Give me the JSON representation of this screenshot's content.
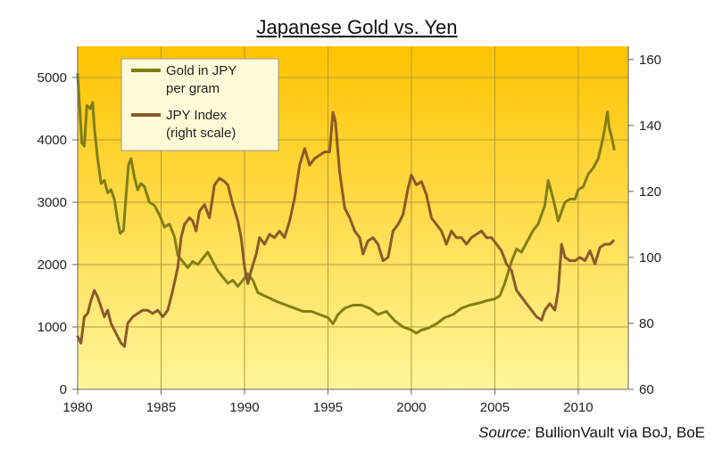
{
  "chart_data": {
    "type": "line",
    "title": "Japanese Gold vs. Yen",
    "source_label": "Source:",
    "source_text": "BullionVault via BoJ, BoE",
    "x_ticks": [
      "1980",
      "1985",
      "1990",
      "1995",
      "2000",
      "2005",
      "2010"
    ],
    "y_left_ticks": [
      "0",
      "1000",
      "2000",
      "3000",
      "4000",
      "5000"
    ],
    "y_right_ticks": [
      "60",
      "80",
      "100",
      "120",
      "140",
      "160"
    ],
    "x_range": [
      1980,
      2013
    ],
    "y_left_range": [
      0,
      5500
    ],
    "y_right_range": [
      60,
      164
    ],
    "grid": true,
    "legend_placement": "top-left",
    "background_gradient": [
      "#ffc300",
      "#fff59a"
    ],
    "series": [
      {
        "name_lines": [
          "Gold in JPY",
          "per gram"
        ],
        "axis": "left",
        "color": "#7f7f15",
        "points": [
          [
            1980.0,
            5050
          ],
          [
            1980.1,
            4600
          ],
          [
            1980.25,
            3950
          ],
          [
            1980.4,
            3900
          ],
          [
            1980.55,
            4550
          ],
          [
            1980.75,
            4500
          ],
          [
            1980.9,
            4600
          ],
          [
            1981.0,
            4200
          ],
          [
            1981.2,
            3700
          ],
          [
            1981.4,
            3300
          ],
          [
            1981.6,
            3350
          ],
          [
            1981.8,
            3150
          ],
          [
            1982.0,
            3200
          ],
          [
            1982.2,
            3050
          ],
          [
            1982.4,
            2700
          ],
          [
            1982.55,
            2500
          ],
          [
            1982.75,
            2550
          ],
          [
            1982.9,
            3100
          ],
          [
            1983.05,
            3600
          ],
          [
            1983.2,
            3700
          ],
          [
            1983.4,
            3400
          ],
          [
            1983.6,
            3200
          ],
          [
            1983.8,
            3300
          ],
          [
            1984.0,
            3250
          ],
          [
            1984.3,
            3000
          ],
          [
            1984.6,
            2950
          ],
          [
            1984.9,
            2800
          ],
          [
            1985.2,
            2600
          ],
          [
            1985.5,
            2650
          ],
          [
            1985.8,
            2450
          ],
          [
            1986.0,
            2150
          ],
          [
            1986.3,
            2050
          ],
          [
            1986.6,
            1950
          ],
          [
            1986.9,
            2050
          ],
          [
            1987.2,
            2000
          ],
          [
            1987.5,
            2100
          ],
          [
            1987.8,
            2200
          ],
          [
            1988.1,
            2050
          ],
          [
            1988.4,
            1900
          ],
          [
            1988.7,
            1800
          ],
          [
            1989.0,
            1700
          ],
          [
            1989.3,
            1750
          ],
          [
            1989.6,
            1650
          ],
          [
            1989.9,
            1750
          ],
          [
            1990.2,
            1850
          ],
          [
            1990.5,
            1750
          ],
          [
            1990.8,
            1550
          ],
          [
            1991.2,
            1500
          ],
          [
            1991.6,
            1450
          ],
          [
            1992.0,
            1400
          ],
          [
            1992.5,
            1350
          ],
          [
            1993.0,
            1300
          ],
          [
            1993.5,
            1250
          ],
          [
            1994.0,
            1250
          ],
          [
            1994.5,
            1200
          ],
          [
            1995.0,
            1150
          ],
          [
            1995.3,
            1050
          ],
          [
            1995.6,
            1200
          ],
          [
            1996.0,
            1300
          ],
          [
            1996.5,
            1350
          ],
          [
            1997.0,
            1350
          ],
          [
            1997.5,
            1300
          ],
          [
            1998.0,
            1200
          ],
          [
            1998.5,
            1250
          ],
          [
            1999.0,
            1100
          ],
          [
            1999.5,
            1000
          ],
          [
            2000.0,
            950
          ],
          [
            2000.3,
            900
          ],
          [
            2000.6,
            950
          ],
          [
            2001.0,
            980
          ],
          [
            2001.5,
            1050
          ],
          [
            2002.0,
            1150
          ],
          [
            2002.5,
            1200
          ],
          [
            2003.0,
            1300
          ],
          [
            2003.5,
            1350
          ],
          [
            2004.0,
            1380
          ],
          [
            2004.5,
            1420
          ],
          [
            2005.0,
            1450
          ],
          [
            2005.3,
            1500
          ],
          [
            2005.6,
            1700
          ],
          [
            2006.0,
            2050
          ],
          [
            2006.3,
            2250
          ],
          [
            2006.6,
            2200
          ],
          [
            2007.0,
            2400
          ],
          [
            2007.3,
            2550
          ],
          [
            2007.6,
            2650
          ],
          [
            2008.0,
            2950
          ],
          [
            2008.2,
            3350
          ],
          [
            2008.5,
            3050
          ],
          [
            2008.8,
            2700
          ],
          [
            2009.0,
            2850
          ],
          [
            2009.2,
            3000
          ],
          [
            2009.5,
            3050
          ],
          [
            2009.8,
            3050
          ],
          [
            2010.0,
            3200
          ],
          [
            2010.3,
            3250
          ],
          [
            2010.6,
            3450
          ],
          [
            2010.9,
            3550
          ],
          [
            2011.2,
            3700
          ],
          [
            2011.5,
            4050
          ],
          [
            2011.75,
            4450
          ],
          [
            2011.85,
            4200
          ],
          [
            2012.0,
            4050
          ],
          [
            2012.15,
            3850
          ]
        ]
      },
      {
        "name_lines": [
          "JPY Index",
          "(right scale)"
        ],
        "axis": "right",
        "color": "#8b5a2b",
        "points": [
          [
            1980.0,
            76
          ],
          [
            1980.2,
            74
          ],
          [
            1980.4,
            82
          ],
          [
            1980.6,
            83
          ],
          [
            1980.8,
            87
          ],
          [
            1981.0,
            90
          ],
          [
            1981.2,
            88
          ],
          [
            1981.4,
            85
          ],
          [
            1981.6,
            82
          ],
          [
            1981.8,
            84
          ],
          [
            1982.0,
            80
          ],
          [
            1982.2,
            78
          ],
          [
            1982.4,
            76
          ],
          [
            1982.6,
            74
          ],
          [
            1982.8,
            73
          ],
          [
            1983.0,
            80
          ],
          [
            1983.3,
            82
          ],
          [
            1983.6,
            83
          ],
          [
            1983.9,
            84
          ],
          [
            1984.2,
            84
          ],
          [
            1984.5,
            83
          ],
          [
            1984.8,
            84
          ],
          [
            1985.1,
            82
          ],
          [
            1985.4,
            84
          ],
          [
            1985.7,
            90
          ],
          [
            1986.0,
            97
          ],
          [
            1986.2,
            106
          ],
          [
            1986.4,
            110
          ],
          [
            1986.7,
            112
          ],
          [
            1986.9,
            111
          ],
          [
            1987.1,
            108
          ],
          [
            1987.3,
            114
          ],
          [
            1987.6,
            116
          ],
          [
            1987.9,
            112
          ],
          [
            1988.2,
            122
          ],
          [
            1988.5,
            124
          ],
          [
            1988.8,
            123
          ],
          [
            1989.0,
            122
          ],
          [
            1989.3,
            116
          ],
          [
            1989.6,
            111
          ],
          [
            1989.8,
            106
          ],
          [
            1990.0,
            97
          ],
          [
            1990.2,
            92
          ],
          [
            1990.4,
            96
          ],
          [
            1990.7,
            101
          ],
          [
            1990.9,
            106
          ],
          [
            1991.2,
            104
          ],
          [
            1991.5,
            107
          ],
          [
            1991.8,
            106
          ],
          [
            1992.1,
            108
          ],
          [
            1992.4,
            106
          ],
          [
            1992.7,
            111
          ],
          [
            1993.0,
            118
          ],
          [
            1993.3,
            128
          ],
          [
            1993.6,
            133
          ],
          [
            1993.9,
            128
          ],
          [
            1994.2,
            130
          ],
          [
            1994.5,
            131
          ],
          [
            1994.8,
            132
          ],
          [
            1995.1,
            132
          ],
          [
            1995.3,
            144
          ],
          [
            1995.45,
            141
          ],
          [
            1995.7,
            126
          ],
          [
            1996.0,
            115
          ],
          [
            1996.3,
            112
          ],
          [
            1996.6,
            108
          ],
          [
            1996.9,
            106
          ],
          [
            1997.1,
            101
          ],
          [
            1997.4,
            105
          ],
          [
            1997.7,
            106
          ],
          [
            1998.0,
            104
          ],
          [
            1998.3,
            99
          ],
          [
            1998.6,
            100
          ],
          [
            1998.9,
            108
          ],
          [
            1999.2,
            110
          ],
          [
            1999.5,
            113
          ],
          [
            1999.8,
            121
          ],
          [
            2000.0,
            125
          ],
          [
            2000.3,
            122
          ],
          [
            2000.6,
            123
          ],
          [
            2000.9,
            119
          ],
          [
            2001.2,
            112
          ],
          [
            2001.5,
            110
          ],
          [
            2001.8,
            108
          ],
          [
            2002.1,
            104
          ],
          [
            2002.4,
            108
          ],
          [
            2002.7,
            106
          ],
          [
            2003.0,
            106
          ],
          [
            2003.3,
            104
          ],
          [
            2003.6,
            106
          ],
          [
            2003.9,
            107
          ],
          [
            2004.2,
            108
          ],
          [
            2004.5,
            106
          ],
          [
            2004.8,
            106
          ],
          [
            2005.1,
            104
          ],
          [
            2005.4,
            102
          ],
          [
            2005.7,
            98
          ],
          [
            2006.0,
            96
          ],
          [
            2006.3,
            90
          ],
          [
            2006.6,
            88
          ],
          [
            2006.9,
            86
          ],
          [
            2007.2,
            84
          ],
          [
            2007.5,
            82
          ],
          [
            2007.8,
            81
          ],
          [
            2008.0,
            84
          ],
          [
            2008.3,
            86
          ],
          [
            2008.6,
            84
          ],
          [
            2008.8,
            90
          ],
          [
            2009.0,
            104
          ],
          [
            2009.2,
            100
          ],
          [
            2009.5,
            99
          ],
          [
            2009.8,
            99
          ],
          [
            2010.1,
            100
          ],
          [
            2010.4,
            99
          ],
          [
            2010.7,
            102
          ],
          [
            2011.0,
            98
          ],
          [
            2011.3,
            103
          ],
          [
            2011.6,
            104
          ],
          [
            2011.9,
            104
          ],
          [
            2012.1,
            105
          ]
        ]
      }
    ]
  }
}
